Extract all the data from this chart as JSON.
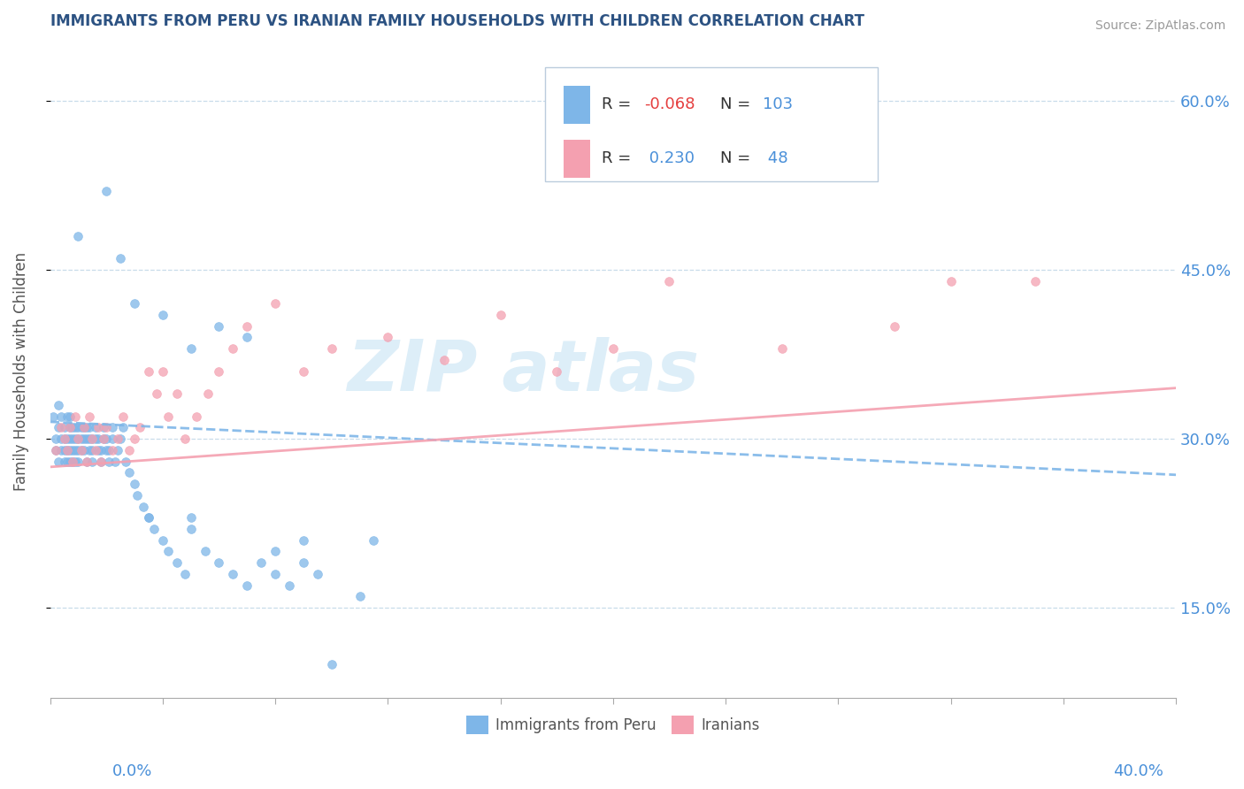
{
  "title": "IMMIGRANTS FROM PERU VS IRANIAN FAMILY HOUSEHOLDS WITH CHILDREN CORRELATION CHART",
  "source_text": "Source: ZipAtlas.com",
  "ylabel": "Family Households with Children",
  "legend_label1": "Immigrants from Peru",
  "legend_label2": "Iranians",
  "blue_color": "#7EB6E8",
  "pink_color": "#F4A0B0",
  "title_color": "#2c5282",
  "axis_label_color": "#4a90d9",
  "watermark_line1": "ZIP",
  "watermark_line2": "atlas",
  "watermark_color": "#ddeef8",
  "xlim": [
    0.0,
    0.4
  ],
  "ylim": [
    0.07,
    0.65
  ],
  "yticks_right": [
    0.15,
    0.3,
    0.45,
    0.6
  ],
  "ytick_labels_right": [
    "15.0%",
    "30.0%",
    "45.0%",
    "60.0%"
  ],
  "blue_trend_start": 0.315,
  "blue_trend_end": 0.268,
  "pink_trend_start": 0.275,
  "pink_trend_end": 0.345,
  "blue_x": [
    0.001,
    0.002,
    0.002,
    0.003,
    0.003,
    0.003,
    0.004,
    0.004,
    0.004,
    0.005,
    0.005,
    0.005,
    0.005,
    0.006,
    0.006,
    0.006,
    0.006,
    0.007,
    0.007,
    0.007,
    0.007,
    0.007,
    0.008,
    0.008,
    0.008,
    0.008,
    0.009,
    0.009,
    0.009,
    0.009,
    0.01,
    0.01,
    0.01,
    0.01,
    0.011,
    0.011,
    0.011,
    0.012,
    0.012,
    0.012,
    0.013,
    0.013,
    0.013,
    0.014,
    0.014,
    0.014,
    0.015,
    0.015,
    0.015,
    0.016,
    0.016,
    0.017,
    0.017,
    0.018,
    0.018,
    0.019,
    0.019,
    0.02,
    0.02,
    0.021,
    0.021,
    0.022,
    0.022,
    0.023,
    0.024,
    0.025,
    0.026,
    0.027,
    0.028,
    0.03,
    0.031,
    0.033,
    0.035,
    0.037,
    0.04,
    0.042,
    0.045,
    0.048,
    0.05,
    0.055,
    0.06,
    0.065,
    0.07,
    0.075,
    0.08,
    0.085,
    0.09,
    0.095,
    0.1,
    0.11,
    0.01,
    0.02,
    0.03,
    0.04,
    0.05,
    0.06,
    0.07,
    0.08,
    0.09,
    0.05,
    0.025,
    0.035,
    0.115
  ],
  "blue_y": [
    0.32,
    0.3,
    0.29,
    0.31,
    0.28,
    0.33,
    0.3,
    0.29,
    0.32,
    0.28,
    0.31,
    0.3,
    0.29,
    0.32,
    0.3,
    0.29,
    0.28,
    0.31,
    0.3,
    0.29,
    0.28,
    0.32,
    0.3,
    0.31,
    0.29,
    0.28,
    0.31,
    0.3,
    0.29,
    0.28,
    0.3,
    0.31,
    0.29,
    0.28,
    0.31,
    0.3,
    0.29,
    0.3,
    0.31,
    0.29,
    0.3,
    0.28,
    0.31,
    0.3,
    0.29,
    0.31,
    0.3,
    0.29,
    0.28,
    0.3,
    0.31,
    0.29,
    0.3,
    0.29,
    0.28,
    0.3,
    0.31,
    0.29,
    0.3,
    0.28,
    0.29,
    0.3,
    0.31,
    0.28,
    0.29,
    0.3,
    0.31,
    0.28,
    0.27,
    0.26,
    0.25,
    0.24,
    0.23,
    0.22,
    0.21,
    0.2,
    0.19,
    0.18,
    0.22,
    0.2,
    0.19,
    0.18,
    0.17,
    0.19,
    0.18,
    0.17,
    0.19,
    0.18,
    0.1,
    0.16,
    0.48,
    0.52,
    0.42,
    0.41,
    0.38,
    0.4,
    0.39,
    0.2,
    0.21,
    0.23,
    0.46,
    0.23,
    0.21
  ],
  "pink_x": [
    0.002,
    0.004,
    0.005,
    0.006,
    0.007,
    0.008,
    0.009,
    0.01,
    0.011,
    0.012,
    0.013,
    0.014,
    0.015,
    0.016,
    0.017,
    0.018,
    0.019,
    0.02,
    0.022,
    0.024,
    0.026,
    0.028,
    0.03,
    0.032,
    0.035,
    0.038,
    0.04,
    0.042,
    0.045,
    0.048,
    0.052,
    0.056,
    0.06,
    0.065,
    0.07,
    0.08,
    0.09,
    0.1,
    0.12,
    0.14,
    0.16,
    0.18,
    0.2,
    0.22,
    0.26,
    0.3,
    0.32,
    0.35
  ],
  "pink_y": [
    0.29,
    0.31,
    0.3,
    0.29,
    0.31,
    0.28,
    0.32,
    0.3,
    0.29,
    0.31,
    0.28,
    0.32,
    0.3,
    0.29,
    0.31,
    0.28,
    0.3,
    0.31,
    0.29,
    0.3,
    0.32,
    0.29,
    0.3,
    0.31,
    0.36,
    0.34,
    0.36,
    0.32,
    0.34,
    0.3,
    0.32,
    0.34,
    0.36,
    0.38,
    0.4,
    0.42,
    0.36,
    0.38,
    0.39,
    0.37,
    0.41,
    0.36,
    0.38,
    0.44,
    0.38,
    0.4,
    0.44,
    0.44
  ]
}
